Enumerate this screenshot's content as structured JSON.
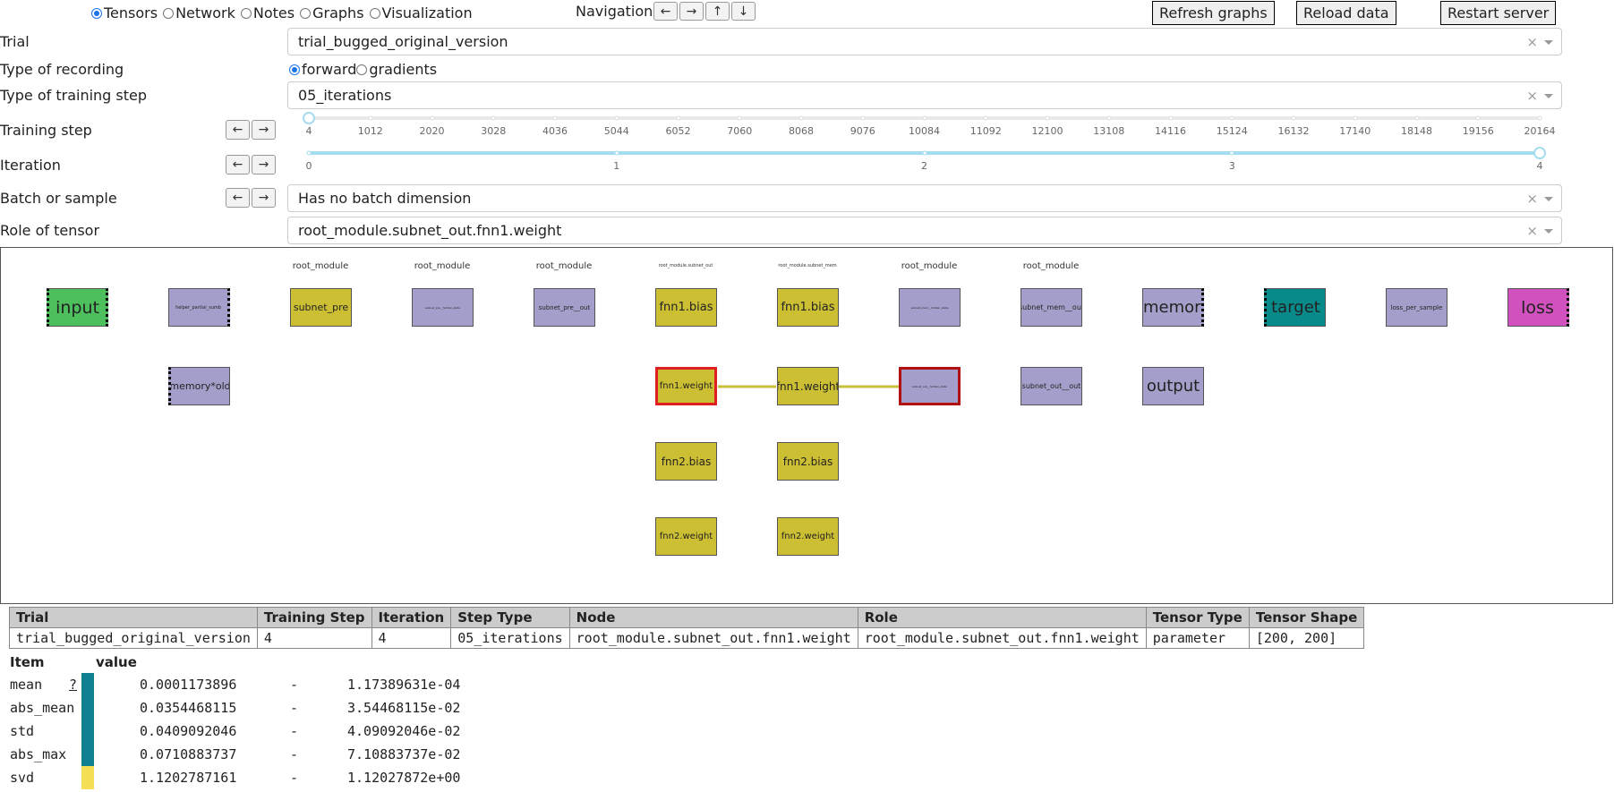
{
  "tabs": [
    {
      "label": "Tensors",
      "selected": true
    },
    {
      "label": "Network",
      "selected": false
    },
    {
      "label": "Notes",
      "selected": false
    },
    {
      "label": "Graphs",
      "selected": false
    },
    {
      "label": "Visualization",
      "selected": false
    }
  ],
  "navigation": {
    "label": "Navigation:",
    "buttons": [
      "←",
      "→",
      "↑",
      "↓"
    ]
  },
  "buttons": {
    "refresh": "Refresh graphs",
    "reload": "Reload data",
    "restart": "Restart server"
  },
  "form": {
    "trial": {
      "label": "Trial",
      "value": "trial_bugged_original_version"
    },
    "recording": {
      "label": "Type of recording",
      "options": [
        {
          "label": "forward",
          "selected": true
        },
        {
          "label": "gradients",
          "selected": false
        }
      ]
    },
    "training_type": {
      "label": "Type of training step",
      "value": "05_iterations"
    },
    "training_step": {
      "label": "Training step",
      "marks": [
        "4",
        "1012",
        "2020",
        "3028",
        "4036",
        "5044",
        "6052",
        "7060",
        "8068",
        "9076",
        "10084",
        "11092",
        "12100",
        "13108",
        "14116",
        "15124",
        "16132",
        "17140",
        "18148",
        "19156",
        "20164"
      ],
      "selected_value": "4"
    },
    "iteration": {
      "label": "Iteration",
      "marks": [
        "0",
        "1",
        "2",
        "3",
        "4"
      ],
      "selected_value": "4"
    },
    "batch": {
      "label": "Batch or sample",
      "value": "Has no batch dimension"
    },
    "role": {
      "label": "Role of tensor",
      "value": "root_module.subnet_out.fnn1.weight"
    },
    "arrows": {
      "left": "←",
      "right": "→"
    },
    "clear_symbol": "×"
  },
  "graph": {
    "column_captions": [
      "root_module",
      "root_module",
      "root_module",
      "root_module.subnet_out",
      "root_module.subnet_mem",
      "root_module",
      "root_module"
    ],
    "nodes": {
      "input": "input",
      "helper": "helper_partial_sumb",
      "subnet_pre": "subnet_pre",
      "subnet_pre_hidden": "subnet_pre__hidden_state",
      "subnet_pre_out": "subnet_pre__out",
      "out_fnn1_bias": "fnn1.bias",
      "mem_fnn1_bias": "fnn1.bias",
      "subnet_mem_hidden": "subnet_mem__hidden_state",
      "subnet_mem_out": "subnet_mem__out",
      "memory": "memory",
      "target": "target",
      "loss_per_sample": "loss_per_sample",
      "loss": "loss",
      "memory_old": "memory*old",
      "out_fnn1_weight": "fnn1.weight",
      "mem_fnn1_weight": "fnn1.weight",
      "subnet_out_hidden": "subnet_out__hidden_state",
      "subnet_out_out": "subnet_out__out",
      "output": "output",
      "out_fnn2_bias": "fnn2.bias",
      "mem_fnn2_bias": "fnn2.bias",
      "out_fnn2_weight": "fnn2.weight",
      "mem_fnn2_weight": "fnn2.weight"
    },
    "colors": {
      "input": "#4dbf5c",
      "parameter": "#cdbf33",
      "tensor": "#a39fca",
      "target": "#098a8a",
      "loss": "#d152be",
      "highlight": "#e02020",
      "edge": "#c8c03a"
    }
  },
  "table": {
    "headers": [
      "Trial",
      "Training Step",
      "Iteration",
      "Step Type",
      "Node",
      "Role",
      "Tensor Type",
      "Tensor Shape"
    ],
    "row": [
      "trial_bugged_original_version",
      "4",
      "4",
      "05_iterations",
      "root_module.subnet_out.fnn1.weight",
      "root_module.subnet_out.fnn1.weight",
      "parameter",
      "[200, 200]"
    ]
  },
  "stats": {
    "headers": {
      "item": "Item",
      "value": "value"
    },
    "help": "?",
    "dash": "-",
    "rows": [
      {
        "item": "mean",
        "value": "0.0001173896",
        "sci": "1.17389631e-04",
        "color": "#0f8090"
      },
      {
        "item": "abs_mean",
        "value": "0.0354468115",
        "sci": "3.54468115e-02",
        "color": "#0f8090"
      },
      {
        "item": "std",
        "value": "0.0409092046",
        "sci": "4.09092046e-02",
        "color": "#0f8090"
      },
      {
        "item": "abs_max",
        "value": "0.0710883737",
        "sci": "7.10883737e-02",
        "color": "#0f8090"
      },
      {
        "item": "svd",
        "value": "1.1202787161",
        "sci": "1.12027872e+00",
        "color": "#f4df55"
      }
    ]
  }
}
